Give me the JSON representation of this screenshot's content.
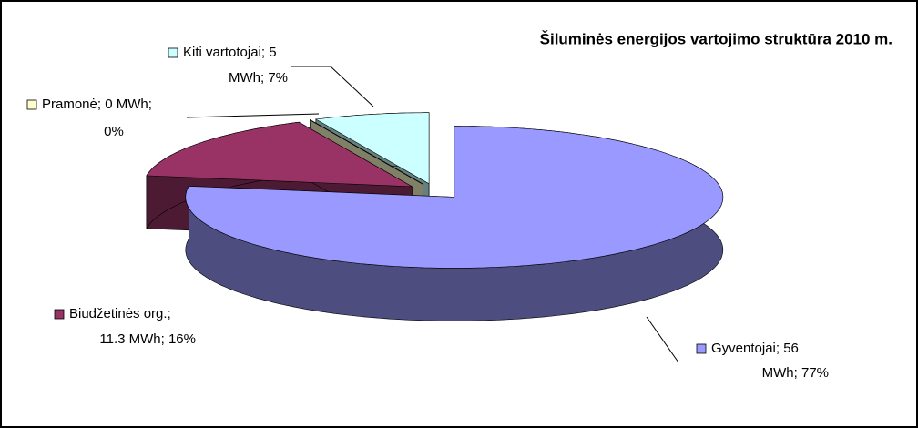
{
  "chart_data": {
    "type": "pie3d",
    "title": "Šiluminės energijos vartojimo struktūra 2010 m.",
    "values": [
      56,
      11.3,
      0,
      5
    ],
    "value_labels": [
      [
        "Gyventojai; 56",
        "MWh; 77%"
      ],
      [
        "Biudžetinės org.;",
        "11.3 MWh; 16%"
      ],
      [
        "Pramonė; 0 MWh;",
        "0%"
      ],
      [
        "Kiti vartotojai; 5",
        "MWh; 7%"
      ]
    ],
    "colors": [
      "#9999ff",
      "#993366",
      "#ffffcc",
      "#ccffff"
    ],
    "side_colors": [
      "#4d4d80",
      "#4d1a33",
      "#808066",
      "#668080"
    ]
  }
}
